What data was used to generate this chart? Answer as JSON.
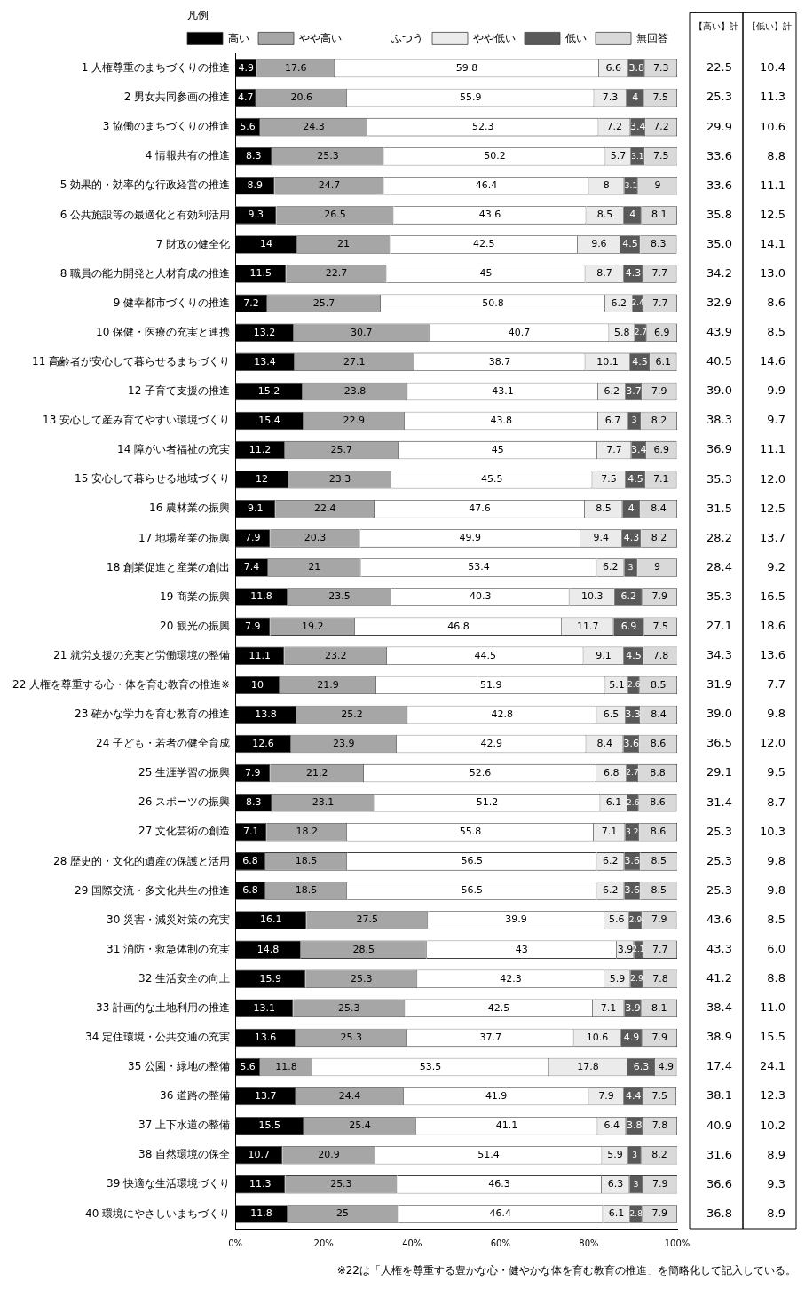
{
  "chart_data": {
    "type": "bar",
    "orientation": "horizontal",
    "stacked": true,
    "data_labels": true,
    "legend": "top",
    "legend_title": "凡例",
    "grid": false,
    "categories": [
      "1 人権尊重のまちづくりの推進",
      "2 男女共同参画の推進",
      "3 協働のまちづくりの推進",
      "4 情報共有の推進",
      "5 効果的・効率的な行政経営の推進",
      "6 公共施設等の最適化と有効利活用",
      "7 財政の健全化",
      "8 職員の能力開発と人材育成の推進",
      "9 健幸都市づくりの推進",
      "10 保健・医療の充実と連携",
      "11 高齢者が安心して暮らせるまちづくり",
      "12 子育て支援の推進",
      "13 安心して産み育てやすい環境づくり",
      "14 障がい者福祉の充実",
      "15 安心して暮らせる地域づくり",
      "16 農林業の振興",
      "17 地場産業の振興",
      "18 創業促進と産業の創出",
      "19 商業の振興",
      "20 観光の振興",
      "21 就労支援の充実と労働環境の整備",
      "22 人権を尊重する心・体を育む教育の推進※",
      "23 確かな学力を育む教育の推進",
      "24 子ども・若者の健全育成",
      "25 生涯学習の振興",
      "26 スポーツの振興",
      "27 文化芸術の創造",
      "28 歴史的・文化的遺産の保護と活用",
      "29 国際交流・多文化共生の推進",
      "30 災害・減災対策の充実",
      "31 消防・救急体制の充実",
      "32 生活安全の向上",
      "33 計画的な土地利用の推進",
      "34 定住環境・公共交通の充実",
      "35 公園・緑地の整備",
      "36 道路の整備",
      "37 上下水道の整備",
      "38 自然環境の保全",
      "39 快適な生活環境づくり",
      "40 環境にやさしいまちづくり"
    ],
    "xlim": [
      0,
      100
    ],
    "xticks": [
      {
        "value": 0,
        "label": "0%"
      },
      {
        "value": 20,
        "label": "20%"
      },
      {
        "value": 40,
        "label": "40%"
      },
      {
        "value": 60,
        "label": "60%"
      },
      {
        "value": 80,
        "label": "80%"
      },
      {
        "value": 100,
        "label": "100%"
      }
    ],
    "series": [
      {
        "name": "高い",
        "color": "#000000",
        "values": [
          4.9,
          4.7,
          5.6,
          8.3,
          8.9,
          9.3,
          14.0,
          11.5,
          7.2,
          13.2,
          13.4,
          15.2,
          15.4,
          11.2,
          12.0,
          9.1,
          7.9,
          7.4,
          11.8,
          7.9,
          11.1,
          10.0,
          13.8,
          12.6,
          7.9,
          8.3,
          7.1,
          6.8,
          6.8,
          16.1,
          14.8,
          15.9,
          13.1,
          13.6,
          5.6,
          13.7,
          15.5,
          10.7,
          11.3,
          11.8
        ]
      },
      {
        "name": "やや高い",
        "color": "#a6a6a6",
        "values": [
          17.6,
          20.6,
          24.3,
          25.3,
          24.7,
          26.5,
          21.0,
          22.7,
          25.7,
          30.7,
          27.1,
          23.8,
          22.9,
          25.7,
          23.3,
          22.4,
          20.3,
          21.0,
          23.5,
          19.2,
          23.2,
          21.9,
          25.2,
          23.9,
          21.2,
          23.1,
          18.2,
          18.5,
          18.5,
          27.5,
          28.5,
          25.3,
          25.3,
          25.3,
          11.8,
          24.4,
          25.4,
          20.9,
          25.3,
          25.0
        ]
      },
      {
        "name": "ふつう",
        "color": "#ffffff",
        "values": [
          59.8,
          55.9,
          52.3,
          50.2,
          46.4,
          43.6,
          42.5,
          45.0,
          50.8,
          40.7,
          38.7,
          43.1,
          43.8,
          45.0,
          45.5,
          47.6,
          49.9,
          53.4,
          40.3,
          46.8,
          44.5,
          51.9,
          42.8,
          42.9,
          52.6,
          51.2,
          55.8,
          56.5,
          56.5,
          39.9,
          43.0,
          42.3,
          42.5,
          37.7,
          53.5,
          41.9,
          41.1,
          51.4,
          46.3,
          46.4
        ]
      },
      {
        "name": "やや低い",
        "color": "#ebebeb",
        "values": [
          6.6,
          7.3,
          7.2,
          5.7,
          8.0,
          8.5,
          9.6,
          8.7,
          6.2,
          5.8,
          10.1,
          6.2,
          6.7,
          7.7,
          7.5,
          8.5,
          9.4,
          6.2,
          10.3,
          11.7,
          9.1,
          5.1,
          6.5,
          8.4,
          6.8,
          6.1,
          7.1,
          6.2,
          6.2,
          5.6,
          3.9,
          5.9,
          7.1,
          10.6,
          17.8,
          7.9,
          6.4,
          5.9,
          6.3,
          6.1
        ]
      },
      {
        "name": "低い",
        "color": "#595959",
        "values": [
          3.8,
          4.0,
          3.4,
          3.1,
          3.1,
          4.0,
          4.5,
          4.3,
          2.4,
          2.7,
          4.5,
          3.7,
          3.0,
          3.4,
          4.5,
          4.0,
          4.3,
          3.0,
          6.2,
          6.9,
          4.5,
          2.6,
          3.3,
          3.6,
          2.7,
          2.6,
          3.2,
          3.6,
          3.6,
          2.9,
          2.1,
          2.9,
          3.9,
          4.9,
          6.3,
          4.4,
          3.8,
          3.0,
          3.0,
          2.8
        ]
      },
      {
        "name": "無回答",
        "color": "#d9d9d9",
        "values": [
          7.3,
          7.5,
          7.2,
          7.5,
          9.0,
          8.1,
          8.3,
          7.7,
          7.7,
          6.9,
          6.1,
          7.9,
          8.2,
          6.9,
          7.1,
          8.4,
          8.2,
          9.0,
          7.9,
          7.5,
          7.8,
          8.5,
          8.4,
          8.6,
          8.8,
          8.6,
          8.6,
          8.5,
          8.5,
          7.9,
          7.7,
          7.8,
          8.1,
          7.9,
          4.9,
          7.5,
          7.8,
          8.2,
          7.9,
          7.9
        ]
      }
    ],
    "annotations": [
      "【高い】計",
      "【低い】計",
      "※22は「人権を尊重する豊かな心・健やかな体を育む教育の推進」を簡略化して記入している。",
      "22.5",
      "10.4",
      "25.3",
      "11.3",
      "29.9",
      "10.6",
      "33.6",
      "8.8",
      "33.6",
      "11.1",
      "35.8",
      "12.5",
      "35.0",
      "14.1",
      "34.2",
      "13.0",
      "32.9",
      "8.6",
      "43.9",
      "8.5",
      "40.5",
      "14.6",
      "39.0",
      "9.9",
      "38.3",
      "9.7",
      "36.9",
      "11.1",
      "35.3",
      "12.0",
      "31.5",
      "12.5",
      "28.2",
      "13.7",
      "28.4",
      "9.2",
      "35.3",
      "16.5",
      "27.1",
      "18.6",
      "34.3",
      "13.6",
      "31.9",
      "7.7",
      "39.0",
      "9.8",
      "36.5",
      "12.0",
      "29.1",
      "9.5",
      "31.4",
      "8.7",
      "25.3",
      "10.3",
      "25.3",
      "9.8",
      "25.3",
      "9.8",
      "43.6",
      "8.5",
      "43.3",
      "6.0",
      "41.2",
      "8.8",
      "38.4",
      "11.0",
      "38.9",
      "15.5",
      "17.4",
      "24.1",
      "38.1",
      "12.3",
      "40.9",
      "10.2",
      "31.6",
      "8.9",
      "36.6",
      "9.3",
      "36.8",
      "8.9"
    ]
  }
}
